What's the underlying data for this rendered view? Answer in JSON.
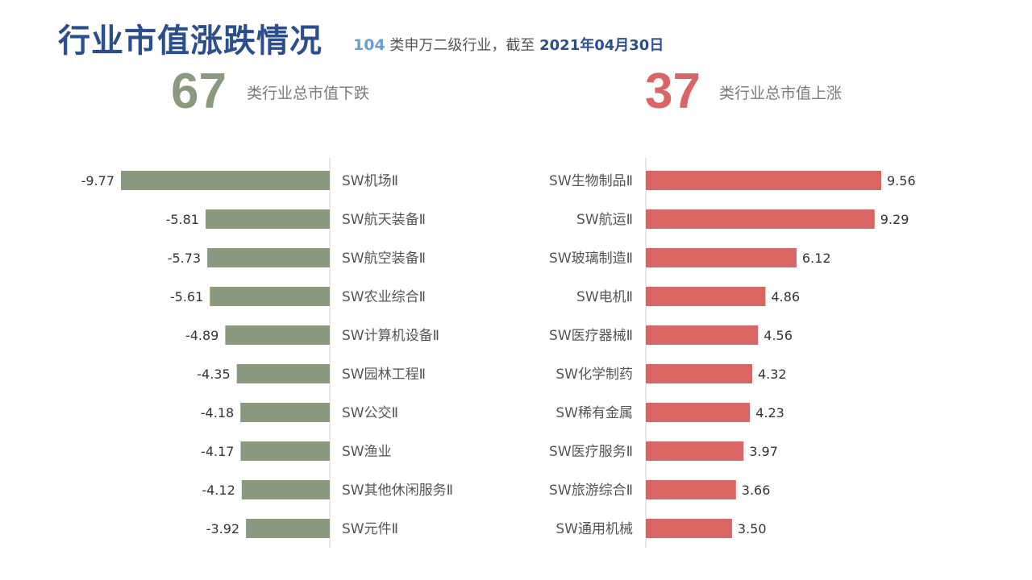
{
  "header": {
    "title": "行业市值涨跌情况",
    "subtitle_count": "104",
    "subtitle_text": " 类申万二级行业，截至 ",
    "subtitle_date": "2021年04月30日"
  },
  "summary": {
    "down_count": "67",
    "down_label": "类行业总市值下跌",
    "up_count": "37",
    "up_label": "类行业总市值上涨"
  },
  "colors": {
    "down": "#899a7e",
    "up": "#d96565",
    "title": "#2b4e8c"
  },
  "chart_data": [
    {
      "type": "bar",
      "orientation": "horizontal",
      "categories": [
        "SW机场Ⅱ",
        "SW航天装备Ⅱ",
        "SW航空装备Ⅱ",
        "SW农业综合Ⅱ",
        "SW计算机设备Ⅱ",
        "SW园林工程Ⅱ",
        "SW公交Ⅱ",
        "SW渔业",
        "SW其他休闲服务Ⅱ",
        "SW元件Ⅱ"
      ],
      "values": [
        -9.77,
        -5.81,
        -5.73,
        -5.61,
        -4.89,
        -4.35,
        -4.18,
        -4.17,
        -4.12,
        -3.92
      ],
      "value_labels": [
        "-9.77",
        "-5.81",
        "-5.73",
        "-5.61",
        "-4.89",
        "-4.35",
        "-4.18",
        "-4.17",
        "-4.12",
        "-3.92"
      ],
      "color": "#899a7e",
      "xlim": [
        -9.77,
        0
      ]
    },
    {
      "type": "bar",
      "orientation": "horizontal",
      "categories": [
        "SW生物制品Ⅱ",
        "SW航运Ⅱ",
        "SW玻璃制造Ⅱ",
        "SW电机Ⅱ",
        "SW医疗器械Ⅱ",
        "SW化学制药",
        "SW稀有金属",
        "SW医疗服务Ⅱ",
        "SW旅游综合Ⅱ",
        "SW通用机械"
      ],
      "values": [
        9.56,
        9.29,
        6.12,
        4.86,
        4.56,
        4.32,
        4.23,
        3.97,
        3.66,
        3.5
      ],
      "value_labels": [
        "9.56",
        "9.29",
        "6.12",
        "4.86",
        "4.56",
        "4.32",
        "4.23",
        "3.97",
        "3.66",
        "3.50"
      ],
      "color": "#d96565",
      "xlim": [
        0,
        9.56
      ]
    }
  ]
}
